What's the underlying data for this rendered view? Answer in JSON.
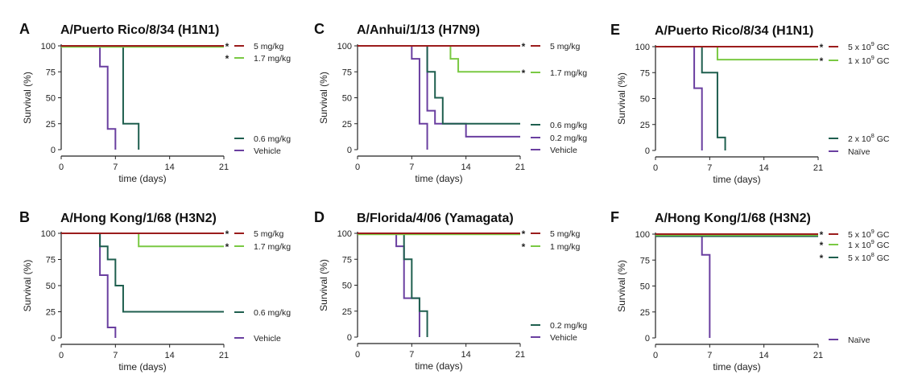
{
  "colors": {
    "5mg": "#9b1c1c",
    "mid_green": "#7ac943",
    "dark_teal": "#1f5f4f",
    "purple": "#6a3fa0",
    "axis": "#222222"
  },
  "chart_data": [
    {
      "type": "line",
      "panel": "A",
      "title": "A/Puerto Rico/8/34 (H1N1)",
      "xlabel": "time (days)",
      "ylabel": "Survival (%)",
      "xlim": [
        0,
        21
      ],
      "ylim": [
        0,
        100
      ],
      "xticks": [
        0,
        7,
        14,
        21
      ],
      "yticks": [
        0,
        25,
        50,
        75,
        100
      ],
      "step": true,
      "series": [
        {
          "name": "5 mg/kg",
          "color_key": "5mg",
          "significant": true,
          "x": [
            0,
            21
          ],
          "y": [
            100,
            100
          ]
        },
        {
          "name": "1.7 mg/kg",
          "color_key": "mid_green",
          "significant": true,
          "x": [
            0,
            21
          ],
          "y": [
            99,
            99
          ]
        },
        {
          "name": "0.6 mg/kg",
          "color_key": "dark_teal",
          "significant": false,
          "x": [
            0,
            8,
            10
          ],
          "y": [
            100,
            25,
            0
          ]
        },
        {
          "name": "Vehicle",
          "color_key": "purple",
          "significant": false,
          "x": [
            0,
            5,
            6,
            7
          ],
          "y": [
            100,
            80,
            20,
            0
          ]
        }
      ]
    },
    {
      "type": "line",
      "panel": "B",
      "title": "A/Hong Kong/1/68 (H3N2)",
      "xlabel": "time (days)",
      "ylabel": "Survival (%)",
      "xlim": [
        0,
        21
      ],
      "ylim": [
        0,
        100
      ],
      "xticks": [
        0,
        7,
        14,
        21
      ],
      "yticks": [
        0,
        25,
        50,
        75,
        100
      ],
      "step": true,
      "series": [
        {
          "name": "5 mg/kg",
          "color_key": "5mg",
          "significant": true,
          "x": [
            0,
            21
          ],
          "y": [
            100,
            100
          ]
        },
        {
          "name": "1.7 mg/kg",
          "color_key": "mid_green",
          "significant": true,
          "x": [
            0,
            10,
            21
          ],
          "y": [
            100,
            87.5,
            87.5
          ]
        },
        {
          "name": "0.6 mg/kg",
          "color_key": "dark_teal",
          "significant": false,
          "x": [
            0,
            5,
            6,
            7,
            8,
            21
          ],
          "y": [
            100,
            87.5,
            75,
            50,
            25,
            25
          ]
        },
        {
          "name": "Vehicle",
          "color_key": "purple",
          "significant": false,
          "x": [
            0,
            5,
            6,
            7
          ],
          "y": [
            100,
            60,
            10,
            0
          ]
        }
      ]
    },
    {
      "type": "line",
      "panel": "C",
      "title": "A/Anhui/1/13 (H7N9)",
      "xlabel": "time (days)",
      "ylabel": "Survival (%)",
      "xlim": [
        0,
        21
      ],
      "ylim": [
        0,
        100
      ],
      "xticks": [
        0,
        7,
        14,
        21
      ],
      "yticks": [
        0,
        25,
        50,
        75,
        100
      ],
      "step": true,
      "series": [
        {
          "name": "5 mg/kg",
          "color_key": "5mg",
          "significant": true,
          "x": [
            0,
            21
          ],
          "y": [
            100,
            100
          ]
        },
        {
          "name": "1.7 mg/kg",
          "color_key": "mid_green",
          "significant": true,
          "x": [
            0,
            12,
            13,
            21
          ],
          "y": [
            100,
            87.5,
            75,
            75
          ]
        },
        {
          "name": "0.6 mg/kg",
          "color_key": "dark_teal",
          "significant": false,
          "x": [
            0,
            9,
            10,
            11,
            21
          ],
          "y": [
            100,
            75,
            50,
            25,
            25
          ]
        },
        {
          "name": "0.2 mg/kg",
          "color_key": "purple",
          "significant": false,
          "x": [
            0,
            9,
            10,
            14,
            21
          ],
          "y": [
            100,
            37.5,
            25,
            12.5,
            12.5
          ]
        },
        {
          "name": "Vehicle",
          "color_key": "purple",
          "significant": false,
          "x": [
            0,
            7,
            8,
            9
          ],
          "y": [
            100,
            87.5,
            25,
            0
          ]
        }
      ]
    },
    {
      "type": "line",
      "panel": "D",
      "title": "B/Florida/4/06 (Yamagata)",
      "xlabel": "time (days)",
      "ylabel": "Survival (%)",
      "xlim": [
        0,
        21
      ],
      "ylim": [
        0,
        100
      ],
      "xticks": [
        0,
        7,
        14,
        21
      ],
      "yticks": [
        0,
        25,
        50,
        75,
        100
      ],
      "step": true,
      "series": [
        {
          "name": "5 mg/kg",
          "color_key": "5mg",
          "significant": true,
          "x": [
            0,
            21
          ],
          "y": [
            100,
            100
          ]
        },
        {
          "name": "1 mg/kg",
          "color_key": "mid_green",
          "significant": true,
          "x": [
            0,
            21
          ],
          "y": [
            99,
            99
          ]
        },
        {
          "name": "0.2 mg/kg",
          "color_key": "dark_teal",
          "significant": false,
          "x": [
            0,
            6,
            7,
            8,
            9
          ],
          "y": [
            100,
            75,
            37.5,
            25,
            0
          ]
        },
        {
          "name": "Vehicle",
          "color_key": "purple",
          "significant": false,
          "x": [
            0,
            5,
            6,
            8
          ],
          "y": [
            100,
            87.5,
            37.5,
            0
          ]
        }
      ]
    },
    {
      "type": "line",
      "panel": "E",
      "title": "A/Puerto Rico/8/34 (H1N1)",
      "xlabel": "time (days)",
      "ylabel": "Survival (%)",
      "xlim": [
        0,
        21
      ],
      "ylim": [
        0,
        100
      ],
      "xticks": [
        0,
        7,
        14,
        21
      ],
      "yticks": [
        0,
        25,
        50,
        75,
        100
      ],
      "step": true,
      "series": [
        {
          "name": "5 x 10^9 GC",
          "label_base": "5 x 10",
          "label_exp": "9",
          "label_tail": " GC",
          "color_key": "5mg",
          "significant": true,
          "x": [
            0,
            21
          ],
          "y": [
            100,
            100
          ]
        },
        {
          "name": "1 x 10^9 GC",
          "label_base": "1 x 10",
          "label_exp": "9",
          "label_tail": " GC",
          "color_key": "mid_green",
          "significant": true,
          "x": [
            0,
            8,
            21
          ],
          "y": [
            100,
            87.5,
            87.5
          ]
        },
        {
          "name": "2 x 10^8 GC",
          "label_base": "2 x 10",
          "label_exp": "8",
          "label_tail": " GC",
          "color_key": "dark_teal",
          "significant": false,
          "x": [
            0,
            6,
            8,
            9
          ],
          "y": [
            100,
            75,
            12.5,
            0
          ]
        },
        {
          "name": "Naïve",
          "label_base": "Naïve",
          "label_exp": "",
          "label_tail": "",
          "color_key": "purple",
          "significant": false,
          "x": [
            0,
            5,
            6
          ],
          "y": [
            100,
            60,
            0
          ]
        }
      ]
    },
    {
      "type": "line",
      "panel": "F",
      "title": "A/Hong Kong/1/68 (H3N2)",
      "xlabel": "time (days)",
      "ylabel": "Survival (%)",
      "xlim": [
        0,
        21
      ],
      "ylim": [
        0,
        100
      ],
      "xticks": [
        0,
        7,
        14,
        21
      ],
      "yticks": [
        0,
        25,
        50,
        75,
        100
      ],
      "step": true,
      "series": [
        {
          "name": "5 x 10^9 GC",
          "label_base": "5 x 10",
          "label_exp": "9",
          "label_tail": " GC",
          "color_key": "5mg",
          "significant": true,
          "x": [
            0,
            21
          ],
          "y": [
            100,
            100
          ]
        },
        {
          "name": "1 x 10^9 GC",
          "label_base": "1 x 10",
          "label_exp": "9",
          "label_tail": " GC",
          "color_key": "mid_green",
          "significant": true,
          "x": [
            0,
            21
          ],
          "y": [
            99,
            99
          ]
        },
        {
          "name": "5 x 10^8 GC",
          "label_base": "5 x 10",
          "label_exp": "8",
          "label_tail": " GC",
          "color_key": "dark_teal",
          "significant": true,
          "x": [
            0,
            21
          ],
          "y": [
            98,
            98
          ]
        },
        {
          "name": "Naïve",
          "label_base": "Naïve",
          "label_exp": "",
          "label_tail": "",
          "color_key": "purple",
          "significant": false,
          "x": [
            0,
            6,
            7
          ],
          "y": [
            100,
            80,
            0
          ]
        }
      ]
    }
  ],
  "significance_marker": "*"
}
